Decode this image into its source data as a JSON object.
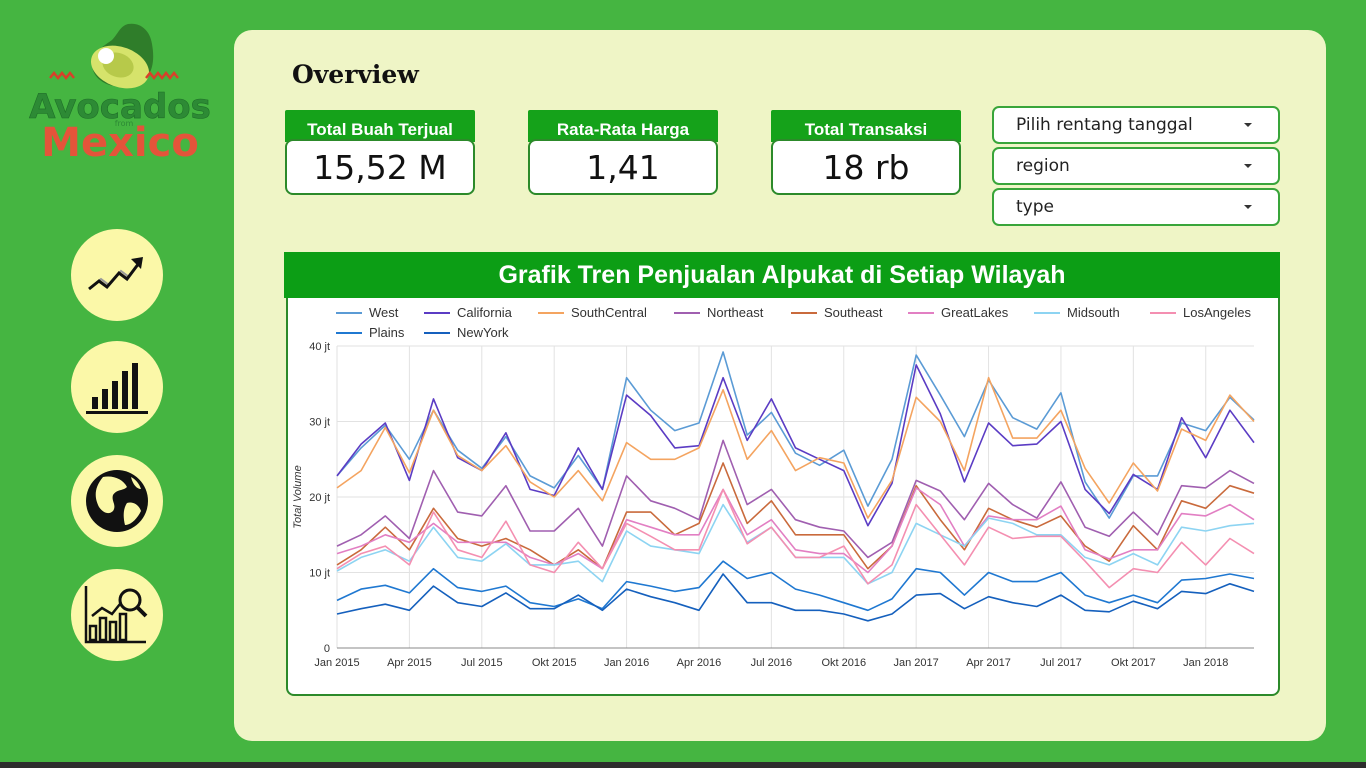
{
  "brand": {
    "logo_line1": "Avocados",
    "logo_small": "from",
    "logo_line2": "Mexico"
  },
  "nav": [
    {
      "name": "nav-trend-icon",
      "label": "trend"
    },
    {
      "name": "nav-bar-chart-icon",
      "label": "bar chart"
    },
    {
      "name": "nav-globe-icon",
      "label": "globe"
    },
    {
      "name": "nav-analytics-icon",
      "label": "analytics"
    }
  ],
  "header": {
    "title": "Overview"
  },
  "kpis": [
    {
      "label": "Total Buah Terjual",
      "value": "15,52 M"
    },
    {
      "label": "Rata-Rata Harga",
      "value": "1,41"
    },
    {
      "label": "Total Transaksi",
      "value": "18 rb"
    }
  ],
  "filters": [
    {
      "label": "Pilih rentang tanggal"
    },
    {
      "label": "region"
    },
    {
      "label": "type"
    }
  ],
  "colors": {
    "brand_green": "#45b541",
    "panel": "#eff5c6",
    "header_green": "#0c9e15",
    "nav_circle": "#fbf8a8"
  },
  "chart_data": {
    "type": "line",
    "title": "Grafik Tren Penjualan Alpukat di Setiap Wilayah",
    "ylabel": "Total Volume",
    "xlabel": "",
    "ylim": [
      0,
      40
    ],
    "y_ticks": [
      "0",
      "10 jt",
      "20 jt",
      "30 jt",
      "40 jt"
    ],
    "y_tick_values": [
      0,
      10,
      20,
      30,
      40
    ],
    "x_tick_labels": [
      "Jan 2015",
      "Apr 2015",
      "Jul 2015",
      "Okt 2015",
      "Jan 2016",
      "Apr 2016",
      "Jul 2016",
      "Okt 2016",
      "Jan 2017",
      "Apr 2017",
      "Jul 2017",
      "Okt 2017",
      "Jan 2018"
    ],
    "x_tick_index": [
      0,
      3,
      6,
      9,
      12,
      15,
      18,
      21,
      24,
      27,
      30,
      33,
      36
    ],
    "unit": "juta",
    "series": [
      {
        "name": "West",
        "color": "#5b9bd5",
        "values": [
          22.8,
          26.5,
          29.5,
          25.0,
          31.5,
          26.2,
          23.8,
          28.0,
          22.8,
          21.2,
          25.5,
          21.0,
          35.8,
          31.5,
          28.8,
          29.8,
          39.2,
          28.2,
          31.2,
          25.8,
          24.2,
          26.2,
          18.8,
          25.0,
          38.8,
          33.5,
          28.0,
          35.5,
          30.5,
          29.0,
          33.8,
          22.0,
          17.2,
          22.8,
          22.8,
          29.8,
          28.8,
          33.2,
          30.2
        ]
      },
      {
        "name": "California",
        "color": "#5b3cc4",
        "values": [
          22.8,
          27.0,
          29.8,
          22.2,
          33.0,
          25.2,
          23.5,
          28.5,
          21.0,
          20.2,
          26.5,
          21.0,
          33.5,
          30.8,
          26.5,
          26.8,
          35.8,
          27.5,
          33.0,
          26.5,
          25.0,
          23.5,
          16.2,
          21.8,
          37.5,
          31.0,
          22.0,
          29.8,
          26.8,
          27.0,
          30.0,
          21.0,
          17.8,
          23.0,
          21.0,
          30.5,
          25.2,
          31.5,
          27.2
        ]
      },
      {
        "name": "SouthCentral",
        "color": "#f4a460",
        "values": [
          21.2,
          23.5,
          29.2,
          23.2,
          31.5,
          25.5,
          23.5,
          26.8,
          22.0,
          20.0,
          23.5,
          19.5,
          27.2,
          25.0,
          25.0,
          26.5,
          34.2,
          25.0,
          28.8,
          23.5,
          25.2,
          24.5,
          17.2,
          22.2,
          33.2,
          30.0,
          23.5,
          35.8,
          27.8,
          27.8,
          31.5,
          23.8,
          19.2,
          24.5,
          20.8,
          29.0,
          27.5,
          33.5,
          30.0
        ]
      },
      {
        "name": "Northeast",
        "color": "#a05fb0",
        "values": [
          13.5,
          15.0,
          17.5,
          14.5,
          23.5,
          18.0,
          17.5,
          21.5,
          15.5,
          15.5,
          18.5,
          13.5,
          22.8,
          19.5,
          18.5,
          17.0,
          27.5,
          19.0,
          21.0,
          17.0,
          16.0,
          15.5,
          12.0,
          14.0,
          22.2,
          20.8,
          17.0,
          21.8,
          19.0,
          17.2,
          22.0,
          16.0,
          14.8,
          18.0,
          15.0,
          21.5,
          21.2,
          23.5,
          21.8
        ]
      },
      {
        "name": "Southeast",
        "color": "#c96a3c",
        "values": [
          11.0,
          13.0,
          16.0,
          13.0,
          18.5,
          14.5,
          13.5,
          14.5,
          13.0,
          11.0,
          13.0,
          10.5,
          18.0,
          18.0,
          15.0,
          16.5,
          24.5,
          16.5,
          19.5,
          15.0,
          15.0,
          15.0,
          10.5,
          13.5,
          21.5,
          17.0,
          13.0,
          18.5,
          17.0,
          16.0,
          17.5,
          13.5,
          11.5,
          16.2,
          13.0,
          19.5,
          18.5,
          21.5,
          20.5
        ]
      },
      {
        "name": "GreatLakes",
        "color": "#e27fc3",
        "values": [
          12.5,
          13.5,
          15.0,
          14.0,
          16.5,
          14.0,
          14.0,
          14.0,
          12.0,
          11.0,
          12.5,
          10.5,
          17.0,
          16.0,
          15.0,
          15.0,
          21.0,
          15.0,
          17.0,
          13.0,
          12.5,
          12.5,
          10.0,
          13.5,
          21.2,
          19.0,
          13.5,
          17.5,
          17.0,
          17.0,
          18.8,
          13.0,
          11.8,
          13.0,
          13.0,
          17.8,
          17.5,
          19.0,
          17.0
        ]
      },
      {
        "name": "Midsouth",
        "color": "#8dd4f2",
        "values": [
          10.2,
          12.0,
          13.0,
          11.5,
          16.0,
          12.0,
          11.5,
          13.8,
          11.0,
          11.0,
          11.5,
          8.8,
          15.5,
          13.5,
          13.0,
          12.5,
          19.0,
          14.0,
          16.0,
          12.0,
          12.0,
          12.0,
          8.5,
          10.0,
          16.5,
          15.0,
          13.5,
          17.2,
          16.5,
          15.0,
          15.0,
          12.0,
          11.0,
          12.5,
          11.0,
          16.0,
          15.5,
          16.2,
          16.5
        ]
      },
      {
        "name": "LosAngeles",
        "color": "#f48fb1",
        "values": [
          10.5,
          12.5,
          13.5,
          11.0,
          18.0,
          13.0,
          12.0,
          16.8,
          11.0,
          10.0,
          14.0,
          10.5,
          16.5,
          14.8,
          13.0,
          13.0,
          21.0,
          13.8,
          16.0,
          12.0,
          12.0,
          13.5,
          8.5,
          11.0,
          19.0,
          15.0,
          11.0,
          16.0,
          14.5,
          14.8,
          14.8,
          11.5,
          8.0,
          10.5,
          10.0,
          14.0,
          11.0,
          14.5,
          12.5
        ]
      },
      {
        "name": "Plains",
        "color": "#1f78d1",
        "values": [
          6.3,
          7.8,
          8.3,
          7.3,
          10.5,
          8.0,
          7.5,
          8.2,
          6.0,
          5.5,
          6.5,
          5.2,
          8.8,
          8.2,
          7.5,
          8.0,
          11.5,
          9.2,
          10.0,
          7.8,
          7.0,
          6.0,
          5.0,
          6.5,
          10.5,
          10.0,
          7.0,
          10.0,
          8.8,
          8.8,
          10.0,
          7.0,
          6.0,
          7.0,
          6.0,
          9.0,
          9.2,
          9.8,
          9.2
        ]
      },
      {
        "name": "NewYork",
        "color": "#1560bd",
        "values": [
          4.5,
          5.2,
          5.8,
          5.0,
          8.2,
          6.0,
          5.5,
          7.3,
          5.2,
          5.2,
          7.0,
          5.0,
          7.8,
          6.8,
          6.0,
          5.0,
          9.8,
          6.0,
          6.0,
          5.0,
          5.0,
          4.5,
          3.6,
          4.5,
          7.0,
          7.2,
          5.2,
          6.8,
          6.0,
          5.5,
          7.0,
          5.0,
          4.8,
          6.2,
          5.2,
          7.5,
          7.2,
          8.5,
          7.5
        ]
      }
    ]
  }
}
